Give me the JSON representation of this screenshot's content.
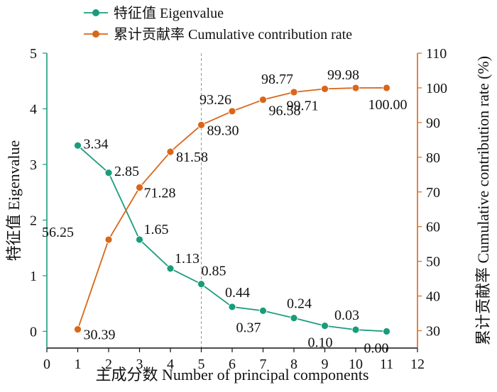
{
  "chart_data": {
    "type": "line",
    "x": [
      1,
      2,
      3,
      4,
      5,
      6,
      7,
      8,
      9,
      10,
      11
    ],
    "xlabel": "主成分数 Number of principal components",
    "xlim": [
      0,
      12
    ],
    "xticks": [
      "0",
      "1",
      "2",
      "3",
      "4",
      "5",
      "6",
      "7",
      "8",
      "9",
      "10",
      "11",
      "12"
    ],
    "ylabel_left": "特征值 Eigenvalue",
    "ylim_left": [
      -0.3,
      5
    ],
    "yticks_left": [
      "0",
      "1",
      "2",
      "3",
      "4",
      "5"
    ],
    "ylabel_right": "累计贡献率 Cumulative contribution rate (%)",
    "ylim_right": [
      25,
      110
    ],
    "yticks_right": [
      "30",
      "40",
      "50",
      "60",
      "70",
      "80",
      "90",
      "100",
      "110"
    ],
    "reference_line_x": 5,
    "legend_position": "top-center",
    "series": [
      {
        "name": "特征值 Eigenvalue",
        "axis": "left",
        "color": "#1a9c7b",
        "values": [
          3.34,
          2.85,
          1.65,
          1.13,
          0.85,
          0.44,
          0.37,
          0.24,
          0.1,
          0.03,
          0.0
        ],
        "labels": [
          "3.34",
          "2.85",
          "1.65",
          "1.13",
          "0.85",
          "0.44",
          "0.37",
          "0.24",
          "0.10",
          "0.03",
          "0.00"
        ]
      },
      {
        "name": "累计贡献率 Cumulative contribution rate",
        "axis": "right",
        "color": "#d9661a",
        "values": [
          30.39,
          56.25,
          71.28,
          81.58,
          89.3,
          93.26,
          96.58,
          98.77,
          99.71,
          99.98,
          100.0
        ],
        "labels": [
          "30.39",
          "56.25",
          "71.28",
          "81.58",
          "89.30",
          "93.26",
          "96.58",
          "98.77",
          "99.71",
          "99.98",
          "100.00"
        ]
      }
    ]
  }
}
